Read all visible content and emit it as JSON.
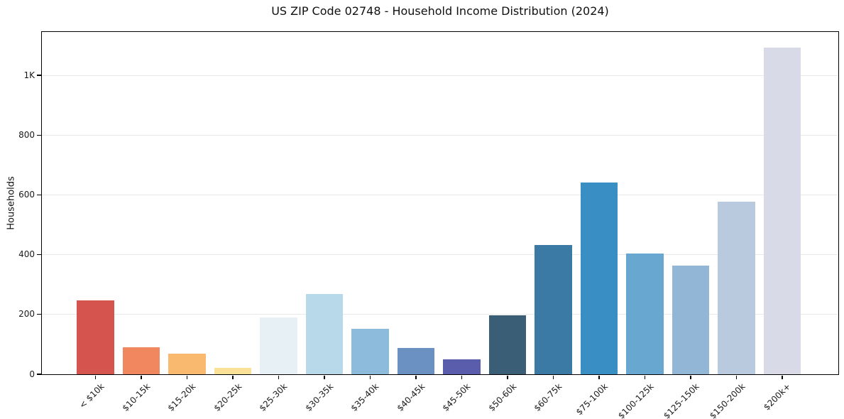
{
  "chart_data": {
    "type": "bar",
    "title": "US ZIP Code 02748 - Household Income Distribution (2024)",
    "xlabel": "",
    "ylabel": "Households",
    "categories": [
      "< $10k",
      "$10-15k",
      "$15-20k",
      "$20-25k",
      "$25-30k",
      "$30-35k",
      "$35-40k",
      "$40-45k",
      "$45-50k",
      "$50-60k",
      "$60-75k",
      "$75-100k",
      "$100-125k",
      "$125-150k",
      "$150-200k",
      "$200k+"
    ],
    "values": [
      247,
      90,
      70,
      21,
      190,
      268,
      152,
      88,
      50,
      197,
      432,
      641,
      405,
      364,
      578,
      1092
    ],
    "bar_colors": [
      "#d6544e",
      "#f0875f",
      "#f9ba6f",
      "#fbe098",
      "#e7f1f5",
      "#b7d9e9",
      "#8dbbdb",
      "#6b90c2",
      "#5a5dab",
      "#3a5e75",
      "#3a7aa4",
      "#398fc4",
      "#68a8d0",
      "#92b7d6",
      "#b9cade",
      "#d8dae7"
    ],
    "yticks": {
      "values": [
        0,
        200,
        400,
        600,
        800,
        1000
      ],
      "labels": [
        "0",
        "200",
        "400",
        "600",
        "800",
        "1K"
      ]
    },
    "ylim": [
      0,
      1145
    ],
    "grid": "horizontal-light",
    "legend": "none",
    "background_color": "#ffffff",
    "axis_color": "#000000",
    "gridline_color": "#e9e9e9"
  }
}
